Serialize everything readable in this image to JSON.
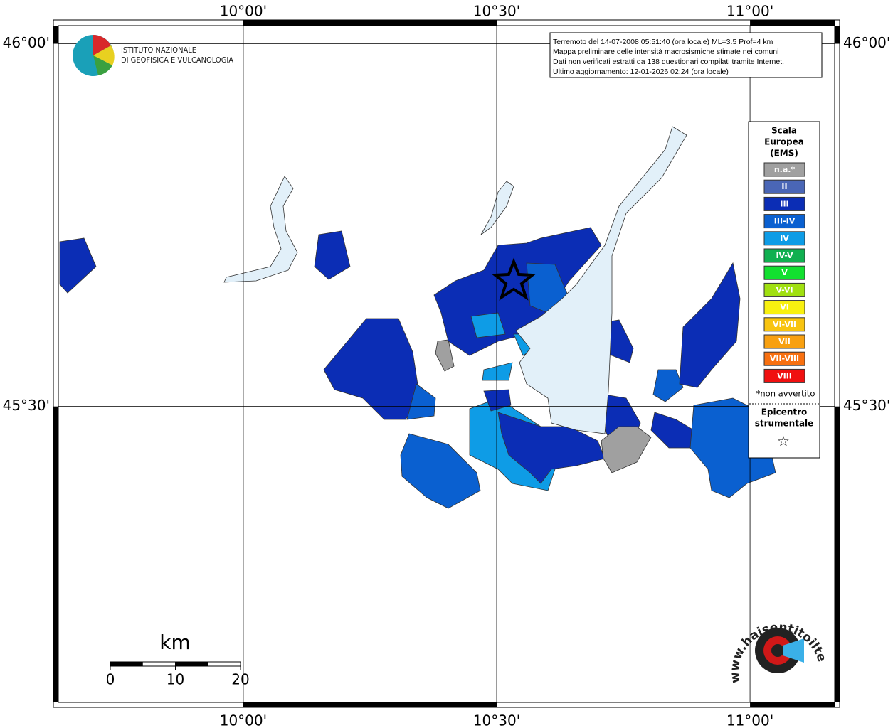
{
  "map": {
    "lonlim": [
      9.635,
      11.167
    ],
    "latlim": [
      45.092,
      46.025
    ],
    "lon_ticks": [
      {
        "value": 10,
        "label": "10°00'"
      },
      {
        "value": 10.5,
        "label": "10°30'"
      },
      {
        "value": 11,
        "label": "11°00'"
      }
    ],
    "lat_ticks": [
      {
        "value": 46,
        "label": "46°00'"
      },
      {
        "value": 45.5,
        "label": "45°30'"
      }
    ]
  },
  "logo": {
    "line1": "ISTITUTO NAZIONALE",
    "line2": "DI GEOFISICA E VULCANOLOGIA"
  },
  "info": [
    "Terremoto del 14-07-2008 05:51:40 (ora locale) ML=3.5 Prof=4 km",
    "Mappa preliminare delle intensità macrosismiche stimate nei comuni",
    "Dati non verificati estratti da 138 questionari compilati tramite Internet.",
    "Ultimo aggiornamento: 12-01-2026 02:24 (ora locale)"
  ],
  "legend": {
    "title": [
      "Scala",
      "Europea",
      "(EMS)"
    ],
    "classes": [
      {
        "label": "n.a.*",
        "color": "#a0a0a0"
      },
      {
        "label": "II",
        "color": "#4a66b6"
      },
      {
        "label": "III",
        "color": "#0b2db5"
      },
      {
        "label": "III-IV",
        "color": "#0a60d0"
      },
      {
        "label": "IV",
        "color": "#0e9ce6"
      },
      {
        "label": "IV-V",
        "color": "#10b050"
      },
      {
        "label": "V",
        "color": "#12e030"
      },
      {
        "label": "V-VI",
        "color": "#a0e010"
      },
      {
        "label": "VI",
        "color": "#f8f010"
      },
      {
        "label": "VI-VII",
        "color": "#f8c410"
      },
      {
        "label": "VII",
        "color": "#f8a010"
      },
      {
        "label": "VII-VIII",
        "color": "#f87010"
      },
      {
        "label": "VIII",
        "color": "#f01010"
      }
    ],
    "note": "*non avvertito",
    "epicenter": [
      "Epicentro",
      "strumentale"
    ],
    "symbol": "☆"
  },
  "scale_bar": {
    "unit": "km",
    "ticks": [
      0,
      10,
      20
    ]
  },
  "watermark": "www.haisentitoilterremoto.it"
}
